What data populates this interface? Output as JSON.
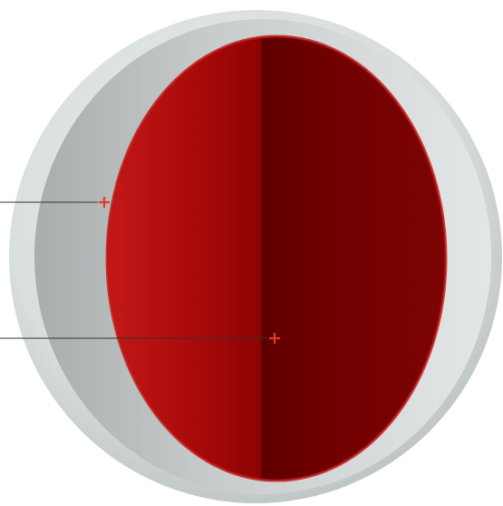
{
  "diagram": {
    "type": "cutaway-sphere",
    "layers": [
      {
        "name": "outer-shell",
        "color": "#dfe3e3"
      },
      {
        "name": "inner-shell",
        "color": "#c9cdcd"
      },
      {
        "name": "core-left-half",
        "color": "#a80808"
      },
      {
        "name": "core-right-half",
        "color": "#760000"
      }
    ],
    "callouts": [
      {
        "name": "inner-shell-callout",
        "marker": "+",
        "marker_color": "#e23a2a",
        "line_color": "#333333"
      },
      {
        "name": "core-callout",
        "marker": "+",
        "marker_color": "#e23a2a",
        "line_color": "#333333"
      }
    ]
  }
}
